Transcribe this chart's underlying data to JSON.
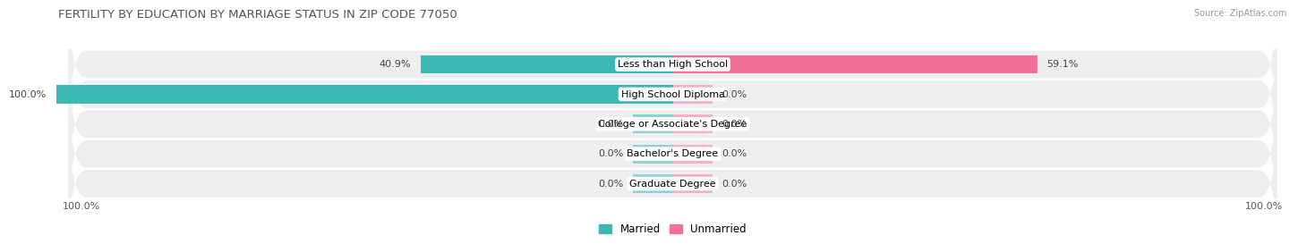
{
  "title": "FERTILITY BY EDUCATION BY MARRIAGE STATUS IN ZIP CODE 77050",
  "source": "Source: ZipAtlas.com",
  "categories": [
    "Less than High School",
    "High School Diploma",
    "College or Associate's Degree",
    "Bachelor's Degree",
    "Graduate Degree"
  ],
  "married_values": [
    40.9,
    100.0,
    0.0,
    0.0,
    0.0
  ],
  "unmarried_values": [
    59.1,
    0.0,
    0.0,
    0.0,
    0.0
  ],
  "married_color": "#3db8b4",
  "unmarried_color": "#f07098",
  "married_color_light": "#90d4d2",
  "unmarried_color_light": "#f4b0c8",
  "row_bg_color": "#eeeeee",
  "axis_label_left": "100.0%",
  "axis_label_right": "100.0%",
  "title_fontsize": 9.5,
  "label_fontsize": 8,
  "bar_height": 0.62,
  "stub_size": 6.5,
  "figsize": [
    14.06,
    2.69
  ]
}
